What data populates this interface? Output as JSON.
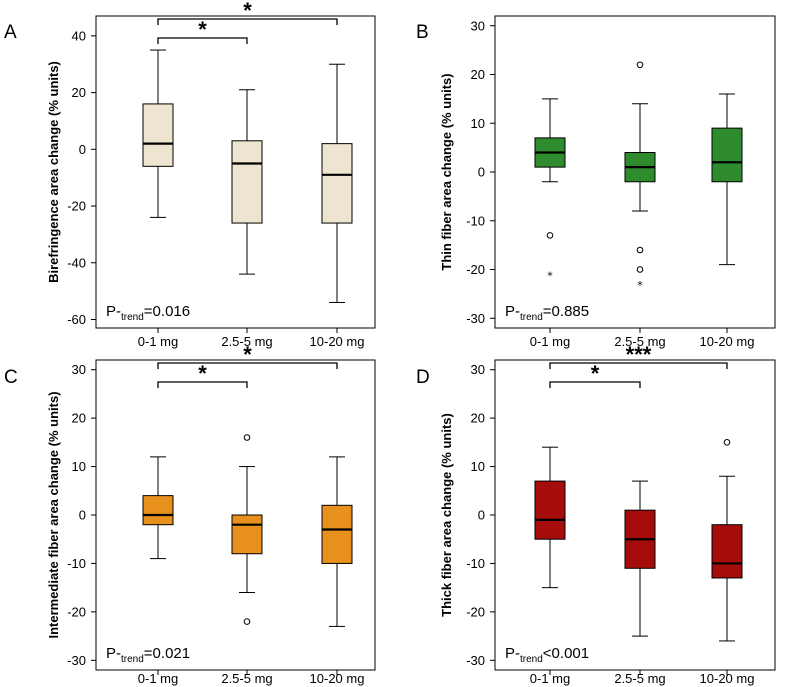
{
  "figure": {
    "panels_order": [
      "A",
      "B",
      "C",
      "D"
    ]
  },
  "chart_data": [
    {
      "panel": "A",
      "type": "boxplot",
      "ylabel": "Birefringence area change (% units)",
      "ylim": [
        -63,
        47
      ],
      "yticks": [
        -60,
        -40,
        -20,
        0,
        20,
        40
      ],
      "categories": [
        "0-1 mg",
        "2.5-5 mg",
        "10-20 mg"
      ],
      "color": "#ede5d0",
      "boxes": [
        {
          "whisker_low": -24,
          "q1": -6,
          "median": 2,
          "q3": 16,
          "whisker_high": 35,
          "outliers": [],
          "extremes": []
        },
        {
          "whisker_low": -44,
          "q1": -26,
          "median": -5,
          "q3": 3,
          "whisker_high": 21,
          "outliers": [],
          "extremes": []
        },
        {
          "whisker_low": -54,
          "q1": -26,
          "median": -9,
          "q3": 2,
          "whisker_high": 30,
          "outliers": [],
          "extremes": []
        }
      ],
      "p_trend": {
        "prefix": "P-",
        "sub": "trend",
        "value": "=0.016"
      },
      "brackets": [
        {
          "from": 0,
          "to": 1,
          "label": "*"
        },
        {
          "from": 0,
          "to": 2,
          "label": "*"
        }
      ]
    },
    {
      "panel": "B",
      "type": "boxplot",
      "ylabel": "Thin fiber area change (% units)",
      "ylim": [
        -32,
        32
      ],
      "yticks": [
        -30,
        -20,
        -10,
        0,
        10,
        20,
        30
      ],
      "categories": [
        "0-1 mg",
        "2.5-5 mg",
        "10-20 mg"
      ],
      "color": "#2e8b2e",
      "boxes": [
        {
          "whisker_low": -2,
          "q1": 1,
          "median": 4,
          "q3": 7,
          "whisker_high": 15,
          "outliers": [
            -13
          ],
          "extremes": [
            -21
          ]
        },
        {
          "whisker_low": -8,
          "q1": -2,
          "median": 1,
          "q3": 4,
          "whisker_high": 14,
          "outliers": [
            22,
            -16,
            -20
          ],
          "extremes": [
            -23
          ]
        },
        {
          "whisker_low": -19,
          "q1": -2,
          "median": 2,
          "q3": 9,
          "whisker_high": 16,
          "outliers": [],
          "extremes": []
        }
      ],
      "p_trend": {
        "prefix": "P-",
        "sub": "trend",
        "value": "=0.885"
      },
      "brackets": []
    },
    {
      "panel": "C",
      "type": "boxplot",
      "ylabel": "Intermediate fiber area change (% units)",
      "ylim": [
        -32,
        32
      ],
      "yticks": [
        -30,
        -20,
        -10,
        0,
        10,
        20,
        30
      ],
      "categories": [
        "0-1 mg",
        "2.5-5 mg",
        "10-20 mg"
      ],
      "color": "#e8901e",
      "boxes": [
        {
          "whisker_low": -9,
          "q1": -2,
          "median": 0,
          "q3": 4,
          "whisker_high": 12,
          "outliers": [],
          "extremes": []
        },
        {
          "whisker_low": -16,
          "q1": -8,
          "median": -2,
          "q3": 0,
          "whisker_high": 10,
          "outliers": [
            16,
            -22
          ],
          "extremes": []
        },
        {
          "whisker_low": -23,
          "q1": -10,
          "median": -3,
          "q3": 2,
          "whisker_high": 12,
          "outliers": [],
          "extremes": []
        }
      ],
      "p_trend": {
        "prefix": "P-",
        "sub": "trend",
        "value": "=0.021"
      },
      "brackets": [
        {
          "from": 0,
          "to": 1,
          "label": "*"
        },
        {
          "from": 0,
          "to": 2,
          "label": "*"
        }
      ]
    },
    {
      "panel": "D",
      "type": "boxplot",
      "ylabel": "Thick fiber area change (% units)",
      "ylim": [
        -32,
        32
      ],
      "yticks": [
        -30,
        -20,
        -10,
        0,
        10,
        20,
        30
      ],
      "categories": [
        "0-1 mg",
        "2.5-5 mg",
        "10-20 mg"
      ],
      "color": "#a50d0d",
      "boxes": [
        {
          "whisker_low": -15,
          "q1": -5,
          "median": -1,
          "q3": 7,
          "whisker_high": 14,
          "outliers": [],
          "extremes": []
        },
        {
          "whisker_low": -25,
          "q1": -11,
          "median": -5,
          "q3": 1,
          "whisker_high": 7,
          "outliers": [],
          "extremes": []
        },
        {
          "whisker_low": -26,
          "q1": -13,
          "median": -10,
          "q3": -2,
          "whisker_high": 8,
          "outliers": [
            15
          ],
          "extremes": []
        }
      ],
      "p_trend": {
        "prefix": "P-",
        "sub": "trend",
        "value": "<0.001"
      },
      "brackets": [
        {
          "from": 0,
          "to": 1,
          "label": "*"
        },
        {
          "from": 0,
          "to": 2,
          "label": "***"
        }
      ]
    }
  ]
}
